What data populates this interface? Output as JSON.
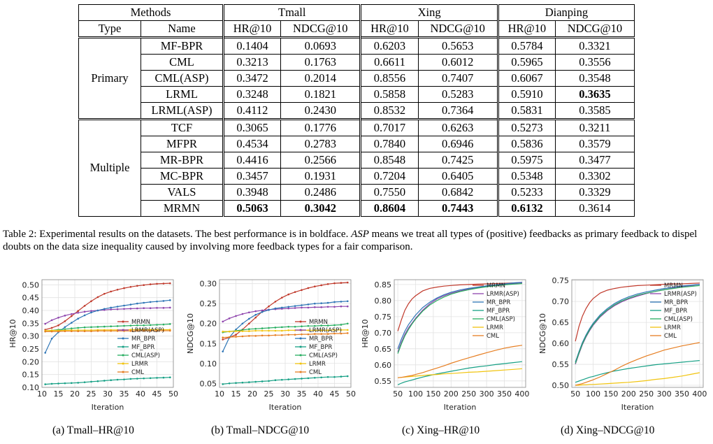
{
  "table": {
    "header": {
      "methods": "Methods",
      "datasets": [
        "Tmall",
        "Xing",
        "Dianping"
      ],
      "type": "Type",
      "name": "Name",
      "metrics": [
        "HR@10",
        "NDCG@10"
      ]
    },
    "groups": [
      {
        "type": "Primary",
        "rows": [
          {
            "name": "MF-BPR",
            "values": [
              "0.1404",
              "0.0693",
              "0.6203",
              "0.5653",
              "0.5784",
              "0.3321"
            ],
            "bold": []
          },
          {
            "name": "CML",
            "values": [
              "0.3213",
              "0.1763",
              "0.6611",
              "0.6012",
              "0.5965",
              "0.3556"
            ],
            "bold": []
          },
          {
            "name": "CML(ASP)",
            "values": [
              "0.3472",
              "0.2014",
              "0.8556",
              "0.7407",
              "0.6067",
              "0.3548"
            ],
            "bold": []
          },
          {
            "name": "LRML",
            "values": [
              "0.3248",
              "0.1821",
              "0.5858",
              "0.5283",
              "0.5910",
              "0.3635"
            ],
            "bold": [
              5
            ]
          },
          {
            "name": "LRML(ASP)",
            "values": [
              "0.4112",
              "0.2430",
              "0.8532",
              "0.7364",
              "0.5831",
              "0.3585"
            ],
            "bold": []
          }
        ]
      },
      {
        "type": "Multiple",
        "rows": [
          {
            "name": "TCF",
            "values": [
              "0.3065",
              "0.1776",
              "0.7017",
              "0.6263",
              "0.5273",
              "0.3211"
            ],
            "bold": []
          },
          {
            "name": "MFPR",
            "values": [
              "0.4534",
              "0.2783",
              "0.7840",
              "0.6946",
              "0.5836",
              "0.3579"
            ],
            "bold": []
          },
          {
            "name": "MR-BPR",
            "values": [
              "0.4416",
              "0.2566",
              "0.8548",
              "0.7425",
              "0.5975",
              "0.3477"
            ],
            "bold": []
          },
          {
            "name": "MC-BPR",
            "values": [
              "0.3457",
              "0.1931",
              "0.7204",
              "0.6405",
              "0.5348",
              "0.3302"
            ],
            "bold": []
          },
          {
            "name": "VALS",
            "values": [
              "0.3948",
              "0.2486",
              "0.7550",
              "0.6842",
              "0.5233",
              "0.3329"
            ],
            "bold": []
          },
          {
            "name": "MRMN",
            "values": [
              "0.5063",
              "0.3042",
              "0.8604",
              "0.7443",
              "0.6132",
              "0.3614"
            ],
            "bold": [
              0,
              1,
              2,
              3,
              4
            ]
          }
        ]
      }
    ]
  },
  "caption": {
    "part1": "Table 2: Experimental results on the datasets. The best performance is in boldface. ",
    "italic": "ASP",
    "part2": " means we treat all types of (positive) feedbacks as primary feedback to dispel doubts on the data size inequality caused by involving more feedback types for a fair comparison."
  },
  "colors": {
    "MRMN": "#c0392b",
    "LRMR(ASP)": "#8e44ad",
    "MR_BPR": "#2e75b6",
    "MF_BPR": "#16a085",
    "CML(ASP)": "#27ae60",
    "LRMR": "#f1c40f",
    "CML": "#e67e22"
  },
  "chart_data": [
    {
      "type": "line",
      "caption": "(a) Tmall–HR@10",
      "xlabel": "Iteration",
      "ylabel": "HR@10",
      "xlim": [
        10,
        50
      ],
      "ylim": [
        0.1,
        0.52
      ],
      "xticks": [
        10,
        15,
        20,
        25,
        30,
        35,
        40,
        45,
        50
      ],
      "yticks": [
        "0.10",
        "0.15",
        "0.20",
        "0.25",
        "0.30",
        "0.35",
        "0.40",
        "0.45",
        "0.50"
      ],
      "grid": true,
      "markers": true,
      "legend": "bottom-right",
      "x": [
        11,
        13,
        15,
        17,
        19,
        21,
        23,
        25,
        27,
        29,
        31,
        33,
        35,
        37,
        39,
        41,
        43,
        45,
        47,
        49
      ],
      "series": [
        {
          "name": "MRMN",
          "values": [
            0.325,
            0.332,
            0.342,
            0.358,
            0.378,
            0.398,
            0.418,
            0.436,
            0.452,
            0.465,
            0.474,
            0.481,
            0.487,
            0.492,
            0.496,
            0.499,
            0.502,
            0.504,
            0.505,
            0.506
          ]
        },
        {
          "name": "LRMR(ASP)",
          "values": [
            0.348,
            0.362,
            0.372,
            0.38,
            0.386,
            0.391,
            0.395,
            0.398,
            0.4,
            0.402,
            0.404,
            0.405,
            0.406,
            0.407,
            0.408,
            0.409,
            0.409,
            0.41,
            0.41,
            0.411
          ]
        },
        {
          "name": "MR_BPR",
          "values": [
            0.235,
            0.29,
            0.315,
            0.335,
            0.352,
            0.368,
            0.381,
            0.392,
            0.4,
            0.406,
            0.411,
            0.415,
            0.419,
            0.423,
            0.427,
            0.43,
            0.433,
            0.435,
            0.437,
            0.44
          ]
        },
        {
          "name": "MF_BPR",
          "values": [
            0.112,
            0.114,
            0.115,
            0.116,
            0.117,
            0.118,
            0.12,
            0.122,
            0.124,
            0.126,
            0.128,
            0.13,
            0.131,
            0.133,
            0.134,
            0.135,
            0.136,
            0.137,
            0.138,
            0.139
          ]
        },
        {
          "name": "CML(ASP)",
          "values": [
            0.318,
            0.322,
            0.325,
            0.327,
            0.33,
            0.332,
            0.334,
            0.335,
            0.336,
            0.337,
            0.338,
            0.339,
            0.34,
            0.341,
            0.342,
            0.342,
            0.343,
            0.344,
            0.345,
            0.347
          ]
        },
        {
          "name": "LRMR",
          "values": [
            0.321,
            0.322,
            0.322,
            0.322,
            0.323,
            0.323,
            0.323,
            0.323,
            0.324,
            0.324,
            0.324,
            0.324,
            0.324,
            0.325,
            0.325,
            0.325,
            0.325,
            0.325,
            0.325,
            0.325
          ]
        },
        {
          "name": "CML",
          "values": [
            0.318,
            0.318,
            0.318,
            0.319,
            0.319,
            0.319,
            0.319,
            0.319,
            0.32,
            0.32,
            0.32,
            0.32,
            0.32,
            0.32,
            0.321,
            0.321,
            0.321,
            0.321,
            0.321,
            0.321
          ]
        }
      ]
    },
    {
      "type": "line",
      "caption": "(b) Tmall–NDCG@10",
      "xlabel": "Iteration",
      "ylabel": "NDCG@10",
      "xlim": [
        10,
        50
      ],
      "ylim": [
        0.04,
        0.31
      ],
      "xticks": [
        10,
        15,
        20,
        25,
        30,
        35,
        40,
        45,
        50
      ],
      "yticks": [
        "0.05",
        "0.10",
        "0.15",
        "0.20",
        "0.25",
        "0.30"
      ],
      "grid": true,
      "markers": true,
      "legend": "bottom-right",
      "x": [
        11,
        13,
        15,
        17,
        19,
        21,
        23,
        25,
        27,
        29,
        31,
        33,
        35,
        37,
        39,
        41,
        43,
        45,
        47,
        49
      ],
      "series": [
        {
          "name": "MRMN",
          "values": [
            0.16,
            0.165,
            0.172,
            0.185,
            0.2,
            0.215,
            0.23,
            0.243,
            0.255,
            0.265,
            0.273,
            0.279,
            0.284,
            0.289,
            0.293,
            0.296,
            0.299,
            0.301,
            0.302,
            0.303
          ]
        },
        {
          "name": "LRMR(ASP)",
          "values": [
            0.205,
            0.213,
            0.219,
            0.224,
            0.228,
            0.231,
            0.233,
            0.235,
            0.236,
            0.237,
            0.238,
            0.239,
            0.24,
            0.24,
            0.241,
            0.241,
            0.242,
            0.242,
            0.243,
            0.243
          ]
        },
        {
          "name": "MR_BPR",
          "values": [
            0.13,
            0.165,
            0.185,
            0.2,
            0.212,
            0.222,
            0.229,
            0.234,
            0.238,
            0.24,
            0.242,
            0.244,
            0.246,
            0.248,
            0.25,
            0.251,
            0.252,
            0.254,
            0.255,
            0.256
          ]
        },
        {
          "name": "MF_BPR",
          "values": [
            0.048,
            0.05,
            0.051,
            0.052,
            0.053,
            0.054,
            0.055,
            0.056,
            0.058,
            0.059,
            0.06,
            0.061,
            0.062,
            0.063,
            0.064,
            0.065,
            0.066,
            0.066,
            0.067,
            0.068
          ]
        },
        {
          "name": "CML(ASP)",
          "values": [
            0.178,
            0.18,
            0.182,
            0.184,
            0.186,
            0.187,
            0.188,
            0.189,
            0.19,
            0.191,
            0.192,
            0.192,
            0.193,
            0.194,
            0.194,
            0.195,
            0.195,
            0.196,
            0.197,
            0.2
          ]
        },
        {
          "name": "LRMR",
          "values": [
            0.18,
            0.18,
            0.181,
            0.181,
            0.181,
            0.182,
            0.182,
            0.182,
            0.182,
            0.182,
            0.183,
            0.183,
            0.183,
            0.183,
            0.183,
            0.183,
            0.183,
            0.184,
            0.184,
            0.184
          ]
        },
        {
          "name": "CML",
          "values": [
            0.165,
            0.166,
            0.167,
            0.168,
            0.169,
            0.169,
            0.17,
            0.17,
            0.171,
            0.171,
            0.172,
            0.172,
            0.173,
            0.173,
            0.174,
            0.174,
            0.174,
            0.175,
            0.175,
            0.176
          ]
        }
      ]
    },
    {
      "type": "line",
      "caption": "(c) Xing–HR@10",
      "xlabel": "Iteration",
      "ylabel": "HR@10",
      "xlim": [
        40,
        410
      ],
      "ylim": [
        0.53,
        0.865
      ],
      "xticks": [
        50,
        100,
        150,
        200,
        250,
        300,
        350,
        400
      ],
      "yticks": [
        "0.55",
        "0.60",
        "0.65",
        "0.70",
        "0.75",
        "0.80",
        "0.85"
      ],
      "grid": true,
      "markers": false,
      "legend": "top-right",
      "x": [
        50,
        60,
        70,
        80,
        90,
        100,
        120,
        140,
        160,
        180,
        200,
        225,
        250,
        275,
        300,
        325,
        350,
        375,
        400
      ],
      "series": [
        {
          "name": "MRMN",
          "values": [
            0.705,
            0.74,
            0.77,
            0.79,
            0.805,
            0.815,
            0.83,
            0.838,
            0.842,
            0.845,
            0.847,
            0.849,
            0.85,
            0.851,
            0.852,
            0.853,
            0.854,
            0.855,
            0.856
          ]
        },
        {
          "name": "LRMR(ASP)",
          "values": [
            0.64,
            0.67,
            0.695,
            0.715,
            0.73,
            0.745,
            0.77,
            0.79,
            0.805,
            0.815,
            0.823,
            0.83,
            0.836,
            0.84,
            0.844,
            0.847,
            0.85,
            0.853,
            0.856
          ]
        },
        {
          "name": "MR_BPR",
          "values": [
            0.65,
            0.68,
            0.705,
            0.725,
            0.74,
            0.755,
            0.778,
            0.795,
            0.808,
            0.818,
            0.826,
            0.833,
            0.838,
            0.842,
            0.846,
            0.849,
            0.852,
            0.855,
            0.857
          ]
        },
        {
          "name": "MF_BPR",
          "values": [
            0.538,
            0.543,
            0.547,
            0.55,
            0.553,
            0.556,
            0.562,
            0.567,
            0.572,
            0.576,
            0.58,
            0.585,
            0.59,
            0.594,
            0.597,
            0.601,
            0.604,
            0.607,
            0.61
          ]
        },
        {
          "name": "CML(ASP)",
          "values": [
            0.635,
            0.665,
            0.69,
            0.71,
            0.727,
            0.742,
            0.767,
            0.786,
            0.8,
            0.811,
            0.82,
            0.828,
            0.834,
            0.839,
            0.843,
            0.846,
            0.849,
            0.851,
            0.853
          ]
        },
        {
          "name": "LRMR",
          "values": [
            0.56,
            0.561,
            0.562,
            0.563,
            0.564,
            0.565,
            0.567,
            0.569,
            0.57,
            0.572,
            0.573,
            0.575,
            0.577,
            0.578,
            0.58,
            0.582,
            0.584,
            0.586,
            0.588
          ]
        },
        {
          "name": "CML",
          "values": [
            0.56,
            0.561,
            0.563,
            0.565,
            0.567,
            0.57,
            0.576,
            0.583,
            0.59,
            0.597,
            0.605,
            0.614,
            0.622,
            0.63,
            0.638,
            0.645,
            0.652,
            0.657,
            0.661
          ]
        }
      ]
    },
    {
      "type": "line",
      "caption": "(d) Xing–NDCG@10",
      "xlabel": "Iteration",
      "ylabel": "NDCG@10",
      "xlim": [
        40,
        410
      ],
      "ylim": [
        0.495,
        0.752
      ],
      "xticks": [
        50,
        100,
        150,
        200,
        250,
        300,
        350,
        400
      ],
      "yticks": [
        "0.50",
        "0.55",
        "0.60",
        "0.65",
        "0.70",
        "0.75"
      ],
      "grid": true,
      "markers": false,
      "legend": "top-right",
      "x": [
        50,
        60,
        70,
        80,
        90,
        100,
        120,
        140,
        160,
        180,
        200,
        225,
        250,
        275,
        300,
        325,
        350,
        375,
        400
      ],
      "series": [
        {
          "name": "MRMN",
          "values": [
            0.605,
            0.64,
            0.665,
            0.683,
            0.697,
            0.707,
            0.72,
            0.727,
            0.731,
            0.734,
            0.736,
            0.738,
            0.739,
            0.74,
            0.741,
            0.742,
            0.742,
            0.743,
            0.744
          ]
        },
        {
          "name": "LRMR(ASP)",
          "values": [
            0.55,
            0.575,
            0.597,
            0.615,
            0.63,
            0.643,
            0.663,
            0.678,
            0.69,
            0.699,
            0.706,
            0.713,
            0.719,
            0.724,
            0.728,
            0.732,
            0.735,
            0.738,
            0.741
          ]
        },
        {
          "name": "MR_BPR",
          "values": [
            0.555,
            0.58,
            0.602,
            0.62,
            0.635,
            0.648,
            0.668,
            0.683,
            0.695,
            0.704,
            0.711,
            0.718,
            0.723,
            0.727,
            0.731,
            0.734,
            0.737,
            0.739,
            0.741
          ]
        },
        {
          "name": "MF_BPR",
          "values": [
            0.507,
            0.51,
            0.513,
            0.516,
            0.519,
            0.521,
            0.526,
            0.53,
            0.534,
            0.537,
            0.54,
            0.543,
            0.546,
            0.549,
            0.551,
            0.553,
            0.555,
            0.557,
            0.559
          ]
        },
        {
          "name": "CML(ASP)",
          "values": [
            0.552,
            0.577,
            0.599,
            0.617,
            0.632,
            0.645,
            0.665,
            0.68,
            0.692,
            0.701,
            0.708,
            0.715,
            0.72,
            0.724,
            0.728,
            0.731,
            0.734,
            0.736,
            0.738
          ]
        },
        {
          "name": "LRMR",
          "values": [
            0.5,
            0.5,
            0.501,
            0.501,
            0.502,
            0.502,
            0.503,
            0.504,
            0.505,
            0.506,
            0.507,
            0.509,
            0.511,
            0.514,
            0.516,
            0.519,
            0.522,
            0.526,
            0.53
          ]
        },
        {
          "name": "CML",
          "values": [
            0.5,
            0.502,
            0.504,
            0.507,
            0.51,
            0.513,
            0.52,
            0.528,
            0.536,
            0.545,
            0.553,
            0.562,
            0.57,
            0.577,
            0.584,
            0.589,
            0.594,
            0.598,
            0.602
          ]
        }
      ]
    }
  ]
}
